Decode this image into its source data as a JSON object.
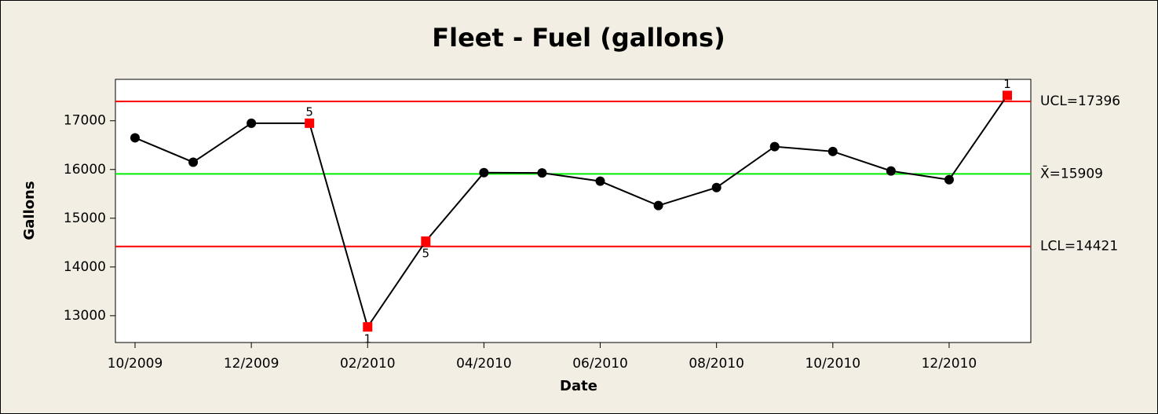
{
  "chart_data": {
    "type": "control",
    "title": "Fleet - Fuel (gallons)",
    "x_label": "Date",
    "y_label": "Gallons",
    "categories": [
      "10/2009",
      null,
      "12/2009",
      null,
      "02/2010",
      null,
      "04/2010",
      null,
      "06/2010",
      null,
      "08/2010",
      null,
      "10/2010",
      null,
      "12/2010",
      null
    ],
    "values": [
      16650,
      16150,
      16950,
      16950,
      12770,
      14530,
      15935,
      15930,
      15760,
      15260,
      15630,
      16470,
      16370,
      15970,
      15790,
      17520
    ],
    "point_flags": [
      null,
      null,
      null,
      "5",
      "1",
      "5",
      null,
      null,
      null,
      null,
      null,
      null,
      null,
      null,
      null,
      "1"
    ],
    "color": "#000000",
    "flag_color": "#ff0000",
    "control_limits": [
      {
        "label": "UCL=17396",
        "value": 17396,
        "color": "#ff0000"
      },
      {
        "label": "X̄=15909",
        "value": 15909,
        "color": "#00ee00"
      },
      {
        "label": "LCL=14421",
        "value": 14421,
        "color": "#ff0000"
      }
    ],
    "ylim": [
      12450,
      17850
    ],
    "yticks": [
      13000,
      14000,
      15000,
      16000,
      17000
    ]
  }
}
